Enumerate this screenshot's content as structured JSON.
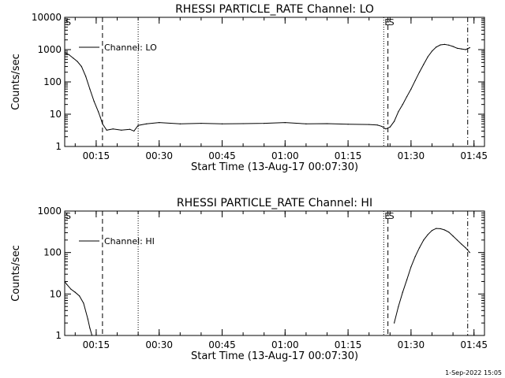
{
  "chart_data": [
    {
      "type": "line",
      "title": "RHESSI PARTICLE_RATE Channel: LO",
      "xlabel": "Start Time (13-Aug-17 00:07:30)",
      "ylabel": "Counts/sec",
      "y_scale": "log",
      "ylim": [
        1,
        10000
      ],
      "xlim_minutes_after_start": [
        0,
        100
      ],
      "x_ticks": [
        "00:15",
        "00:30",
        "00:45",
        "01:00",
        "01:15",
        "01:30",
        "01:45"
      ],
      "y_ticks": [
        "1",
        "10",
        "100",
        "1000",
        "10000"
      ],
      "legend": "top-left",
      "series": [
        {
          "name": "Channel: LO",
          "x": [
            "00:07:30",
            "00:08:30",
            "00:09:30",
            "00:10:30",
            "00:11:30",
            "00:12:30",
            "00:13:30",
            "00:14:30",
            "00:15:30",
            "00:16:00",
            "00:16:30",
            "00:17:30",
            "00:19:00",
            "00:21:00",
            "00:23:00",
            "00:24:00",
            "00:25:00",
            "00:27:00",
            "00:30:00",
            "00:35:00",
            "00:40:00",
            "00:45:00",
            "00:50:00",
            "00:55:00",
            "01:00:00",
            "01:05:00",
            "01:10:00",
            "01:15:00",
            "01:20:00",
            "01:22:00",
            "01:23:00",
            "01:24:00",
            "01:25:00",
            "01:26:00",
            "01:27:00",
            "01:28:00",
            "01:29:00",
            "01:30:00",
            "01:31:00",
            "01:32:00",
            "01:33:00",
            "01:34:00",
            "01:35:00",
            "01:36:00",
            "01:37:00",
            "01:38:00",
            "01:39:00",
            "01:40:00",
            "01:41:00",
            "01:42:00",
            "01:43:00",
            "01:44:00"
          ],
          "values": [
            800,
            700,
            550,
            430,
            300,
            150,
            60,
            25,
            12,
            8,
            5,
            3.2,
            3.5,
            3.2,
            3.4,
            3.0,
            4.5,
            5.0,
            5.5,
            5.0,
            5.2,
            5.0,
            5.1,
            5.2,
            5.5,
            5.0,
            5.1,
            4.9,
            4.8,
            4.6,
            4.2,
            3.5,
            4.0,
            6.0,
            12,
            20,
            35,
            60,
            110,
            200,
            350,
            600,
            900,
            1200,
            1400,
            1450,
            1380,
            1250,
            1100,
            1050,
            1000,
            1150
          ]
        }
      ],
      "markers": [
        {
          "label": "S",
          "time": "00:07:30",
          "style": "dashed"
        },
        {
          "label": "",
          "time": "00:16:30",
          "style": "dashed"
        },
        {
          "label": "",
          "time": "00:25:00",
          "style": "dotted"
        },
        {
          "label": "E",
          "time": "01:23:30",
          "style": "dotted"
        },
        {
          "label": "S",
          "time": "01:24:30",
          "style": "dashed"
        },
        {
          "label": "",
          "time": "01:43:30",
          "style": "dash-dot"
        }
      ]
    },
    {
      "type": "line",
      "title": "RHESSI PARTICLE_RATE Channel: HI",
      "xlabel": "Start Time (13-Aug-17 00:07:30)",
      "ylabel": "Counts/sec",
      "y_scale": "log",
      "ylim": [
        1,
        1000
      ],
      "xlim_minutes_after_start": [
        0,
        100
      ],
      "x_ticks": [
        "00:15",
        "00:30",
        "00:45",
        "01:00",
        "01:15",
        "01:30",
        "01:45"
      ],
      "y_ticks": [
        "1",
        "10",
        "100",
        "1000"
      ],
      "legend": "top-left",
      "series": [
        {
          "name": "Channel: HI",
          "x": [
            "00:07:30",
            "00:08:00",
            "00:09:00",
            "00:10:00",
            "00:11:00",
            "00:12:00",
            "00:13:00",
            "00:13:30",
            "00:14:00",
            "01:26:00",
            "01:27:00",
            "01:28:00",
            "01:29:00",
            "01:30:00",
            "01:31:00",
            "01:32:00",
            "01:33:00",
            "01:34:00",
            "01:35:00",
            "01:36:00",
            "01:37:00",
            "01:38:00",
            "01:39:00",
            "01:40:00",
            "01:41:00",
            "01:42:00",
            "01:43:00",
            "01:44:00"
          ],
          "values": [
            20,
            17,
            13,
            11,
            9,
            6,
            2.5,
            1.5,
            1.0,
            2,
            5,
            11,
            22,
            45,
            80,
            130,
            200,
            270,
            340,
            380,
            375,
            350,
            310,
            250,
            200,
            160,
            130,
            100
          ]
        }
      ],
      "markers": [
        {
          "label": "S",
          "time": "00:07:30",
          "style": "dashed"
        },
        {
          "label": "",
          "time": "00:16:30",
          "style": "dashed"
        },
        {
          "label": "",
          "time": "00:25:00",
          "style": "dotted"
        },
        {
          "label": "E",
          "time": "01:23:30",
          "style": "dotted"
        },
        {
          "label": "S",
          "time": "01:24:30",
          "style": "dashed"
        },
        {
          "label": "",
          "time": "01:43:30",
          "style": "dash-dot"
        }
      ]
    }
  ],
  "footer": {
    "timestamp": "1-Sep-2022 15:05"
  }
}
